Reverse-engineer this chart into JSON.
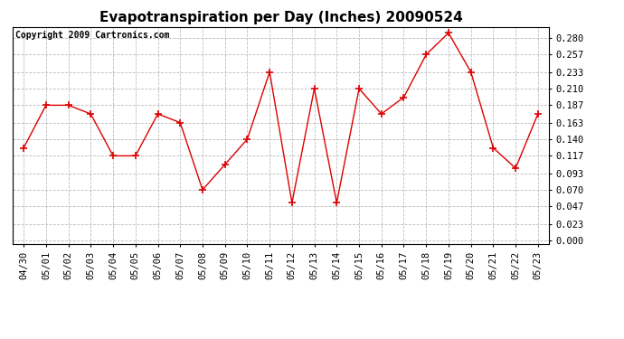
{
  "title": "Evapotranspiration per Day (Inches) 20090524",
  "copyright": "Copyright 2009 Cartronics.com",
  "dates": [
    "04/30",
    "05/01",
    "05/02",
    "05/03",
    "05/04",
    "05/05",
    "05/06",
    "05/07",
    "05/08",
    "05/09",
    "05/10",
    "05/11",
    "05/12",
    "05/13",
    "05/14",
    "05/15",
    "05/16",
    "05/17",
    "05/18",
    "05/19",
    "05/20",
    "05/21",
    "05/22",
    "05/23"
  ],
  "values": [
    0.128,
    0.187,
    0.187,
    0.175,
    0.117,
    0.117,
    0.175,
    0.163,
    0.07,
    0.105,
    0.14,
    0.233,
    0.052,
    0.21,
    0.052,
    0.21,
    0.175,
    0.198,
    0.257,
    0.287,
    0.233,
    0.128,
    0.1,
    0.175
  ],
  "line_color": "#dd0000",
  "marker": "+",
  "marker_size": 6,
  "bg_color": "#ffffff",
  "plot_bg_color": "#ffffff",
  "grid_color": "#aaaaaa",
  "yticks": [
    0.0,
    0.023,
    0.047,
    0.07,
    0.093,
    0.117,
    0.14,
    0.163,
    0.187,
    0.21,
    0.233,
    0.257,
    0.28
  ],
  "ylim": [
    -0.005,
    0.295
  ],
  "title_fontsize": 11,
  "copyright_fontsize": 7,
  "tick_fontsize": 7.5
}
